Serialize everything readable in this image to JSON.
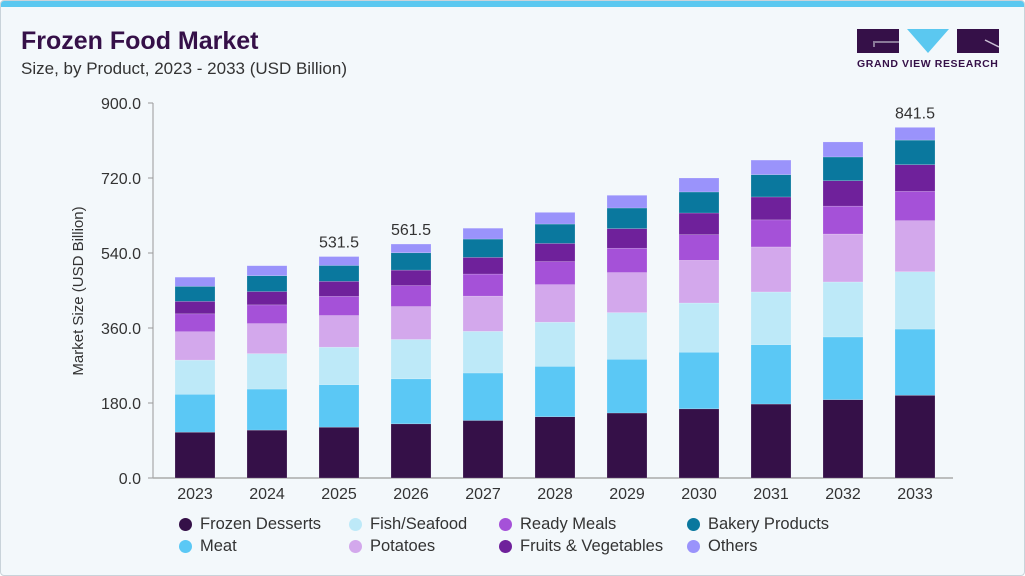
{
  "header": {
    "title": "Frozen Food Market",
    "subtitle": "Size, by Product, 2023 - 2033 (USD Billion)"
  },
  "logo": {
    "text": "GRAND VIEW RESEARCH",
    "colors": {
      "dark": "#351048",
      "light": "#5bc8f0"
    }
  },
  "chart_data": {
    "type": "bar",
    "stacked": true,
    "title": "Frozen Food Market",
    "subtitle": "Size, by Product, 2023 - 2033 (USD Billion)",
    "xlabel": "",
    "ylabel": "Market Size (USD Billion)",
    "ylim": [
      0,
      900
    ],
    "yticks": [
      "0.0",
      "180.0",
      "360.0",
      "540.0",
      "720.0",
      "900.0"
    ],
    "grid": false,
    "legend": "bottom",
    "categories": [
      "2023",
      "2024",
      "2025",
      "2026",
      "2027",
      "2028",
      "2029",
      "2030",
      "2031",
      "2032",
      "2033"
    ],
    "series": [
      {
        "name": "Frozen Desserts",
        "color": "#351048",
        "values": [
          110,
          115,
          122,
          130,
          138,
          147,
          156,
          166,
          177.5,
          188,
          198.5
        ]
      },
      {
        "name": "Meat",
        "color": "#5bc8f5",
        "values": [
          91,
          98.5,
          102,
          108,
          114,
          121,
          129,
          136,
          142.5,
          150.5,
          159
        ]
      },
      {
        "name": "Fish/Seafood",
        "color": "#bde9f8",
        "values": [
          82,
          85,
          90,
          94.5,
          100,
          106,
          112,
          118,
          126.5,
          132,
          137.5
        ]
      },
      {
        "name": "Potatoes",
        "color": "#d3a8ec",
        "values": [
          68,
          72,
          76,
          79,
          84.5,
          90,
          96,
          102.5,
          108,
          115,
          122.5
        ]
      },
      {
        "name": "Ready Meals",
        "color": "#a551d8",
        "values": [
          43,
          45,
          46,
          50.5,
          53,
          55.5,
          58.5,
          61.5,
          65,
          67,
          70.5
        ]
      },
      {
        "name": "Fruits & Vegetables",
        "color": "#6f219b",
        "values": [
          30,
          32,
          36,
          37,
          40,
          43.5,
          47,
          52,
          55,
          61,
          64
        ]
      },
      {
        "name": "Bakery Products",
        "color": "#0a789e",
        "values": [
          36,
          38,
          38,
          41.5,
          44,
          46.5,
          49.5,
          50.5,
          53.5,
          57,
          59
        ]
      },
      {
        "name": "Others",
        "color": "#9a93fb",
        "values": [
          22,
          24,
          21.5,
          21,
          26,
          28,
          30.5,
          33.5,
          35,
          36,
          30.5
        ]
      }
    ],
    "annotations": [
      {
        "category": "2025",
        "label": "531.5"
      },
      {
        "category": "2026",
        "label": "561.5"
      },
      {
        "category": "2033",
        "label": "841.5"
      }
    ]
  }
}
